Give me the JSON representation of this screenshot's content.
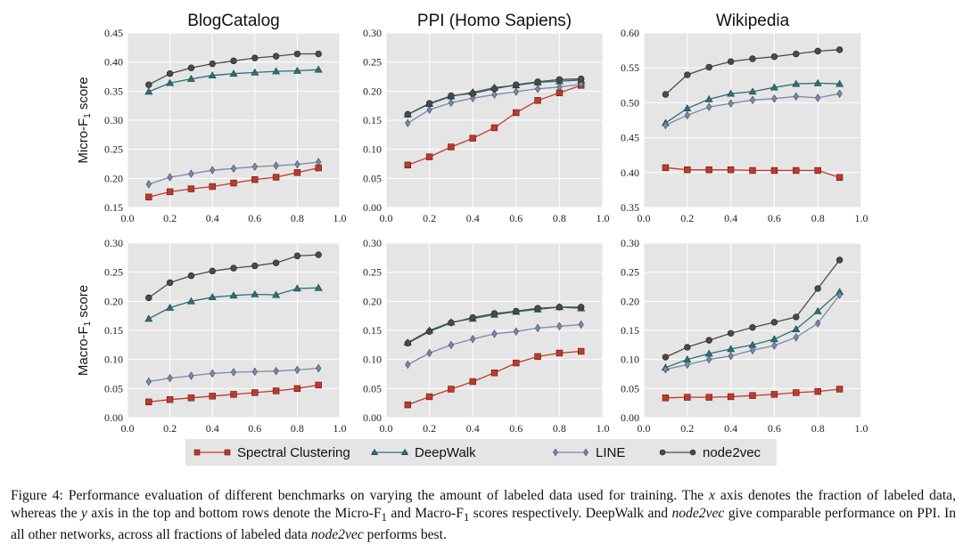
{
  "caption": {
    "p1": "Figure 4: Performance evaluation of different benchmarks on varying the amount of labeled data used for training. The ",
    "v1": "x",
    "p2": " axis denotes the fraction of labeled data, whereas the ",
    "v2": "y",
    "p3": " axis in the top and bottom rows denote the Micro-F",
    "s1": "1",
    "p4": " and Macro-F",
    "s2": "1",
    "p5": " scores respectively. DeepWalk and ",
    "i1": "node2vec",
    "p6": " give comparable performance on PPI. In all other networks, across all fractions of labeled data ",
    "i2": "node2vec",
    "p7": " performs best."
  },
  "legend": [
    {
      "key": "sc",
      "label": "Spectral Clustering"
    },
    {
      "key": "dw",
      "label": "DeepWalk"
    },
    {
      "key": "line",
      "label": "LINE"
    },
    {
      "key": "n2v",
      "label": "node2vec"
    }
  ],
  "colors": {
    "plot_bg": "#e5e5e5",
    "grid": "#ffffff",
    "sc": "#c0392b",
    "dw": "#2f6f73",
    "line": "#7a8aa6",
    "n2v": "#4a4a4a",
    "legend_bg": "#e5e5e5"
  },
  "chart_data": [
    {
      "type": "line",
      "title": "BlogCatalog",
      "ylabel": "Micro-F1 score",
      "xlim": [
        0.0,
        1.0
      ],
      "ylim": [
        0.15,
        0.45
      ],
      "xticks": [
        "0.0",
        "0.2",
        "0.4",
        "0.6",
        "0.8",
        "1.0"
      ],
      "yticks": [
        "0.15",
        "0.20",
        "0.25",
        "0.30",
        "0.35",
        "0.40",
        "0.45"
      ],
      "x": [
        0.1,
        0.2,
        0.3,
        0.4,
        0.5,
        0.6,
        0.7,
        0.8,
        0.9
      ],
      "series": [
        {
          "key": "sc",
          "name": "Spectral Clustering",
          "values": [
            0.168,
            0.177,
            0.182,
            0.186,
            0.192,
            0.198,
            0.202,
            0.21,
            0.218
          ]
        },
        {
          "key": "dw",
          "name": "DeepWalk",
          "values": [
            0.349,
            0.364,
            0.371,
            0.377,
            0.38,
            0.382,
            0.384,
            0.385,
            0.387
          ]
        },
        {
          "key": "line",
          "name": "LINE",
          "values": [
            0.19,
            0.202,
            0.208,
            0.214,
            0.217,
            0.22,
            0.222,
            0.224,
            0.228
          ]
        },
        {
          "key": "n2v",
          "name": "node2vec",
          "values": [
            0.361,
            0.38,
            0.39,
            0.397,
            0.402,
            0.407,
            0.41,
            0.414,
            0.414
          ]
        }
      ]
    },
    {
      "type": "line",
      "title": "PPI (Homo Sapiens)",
      "ylabel": "",
      "xlim": [
        0.0,
        1.0
      ],
      "ylim": [
        0.0,
        0.3
      ],
      "xticks": [
        "0.0",
        "0.2",
        "0.4",
        "0.6",
        "0.8",
        "1.0"
      ],
      "yticks": [
        "0.00",
        "0.05",
        "0.10",
        "0.15",
        "0.20",
        "0.25",
        "0.30"
      ],
      "x": [
        0.1,
        0.2,
        0.3,
        0.4,
        0.5,
        0.6,
        0.7,
        0.8,
        0.9
      ],
      "series": [
        {
          "key": "sc",
          "name": "Spectral Clustering",
          "values": [
            0.073,
            0.087,
            0.104,
            0.119,
            0.137,
            0.163,
            0.184,
            0.197,
            0.21
          ]
        },
        {
          "key": "dw",
          "name": "DeepWalk",
          "values": [
            0.16,
            0.178,
            0.191,
            0.198,
            0.206,
            0.21,
            0.215,
            0.217,
            0.219
          ]
        },
        {
          "key": "line",
          "name": "LINE",
          "values": [
            0.145,
            0.168,
            0.18,
            0.188,
            0.194,
            0.199,
            0.204,
            0.207,
            0.212
          ]
        },
        {
          "key": "n2v",
          "name": "node2vec",
          "values": [
            0.16,
            0.179,
            0.192,
            0.196,
            0.204,
            0.211,
            0.216,
            0.22,
            0.221
          ]
        }
      ]
    },
    {
      "type": "line",
      "title": "Wikipedia",
      "ylabel": "",
      "xlim": [
        0.0,
        1.0
      ],
      "ylim": [
        0.35,
        0.6
      ],
      "xticks": [
        "0.0",
        "0.2",
        "0.4",
        "0.6",
        "0.8",
        "1.0"
      ],
      "yticks": [
        "0.35",
        "0.40",
        "0.45",
        "0.50",
        "0.55",
        "0.60"
      ],
      "x": [
        0.1,
        0.2,
        0.3,
        0.4,
        0.5,
        0.6,
        0.7,
        0.8,
        0.9
      ],
      "series": [
        {
          "key": "sc",
          "name": "Spectral Clustering",
          "values": [
            0.407,
            0.404,
            0.404,
            0.404,
            0.403,
            0.403,
            0.403,
            0.403,
            0.393
          ]
        },
        {
          "key": "dw",
          "name": "DeepWalk",
          "values": [
            0.471,
            0.492,
            0.505,
            0.513,
            0.516,
            0.522,
            0.527,
            0.528,
            0.527
          ]
        },
        {
          "key": "line",
          "name": "LINE",
          "values": [
            0.468,
            0.482,
            0.494,
            0.499,
            0.504,
            0.506,
            0.509,
            0.507,
            0.513
          ]
        },
        {
          "key": "n2v",
          "name": "node2vec",
          "values": [
            0.512,
            0.54,
            0.551,
            0.559,
            0.563,
            0.566,
            0.57,
            0.574,
            0.576
          ]
        }
      ]
    },
    {
      "type": "line",
      "title": "",
      "ylabel": "Macro-F1 score",
      "xlim": [
        0.0,
        1.0
      ],
      "ylim": [
        0.0,
        0.3
      ],
      "xticks": [
        "0.0",
        "0.2",
        "0.4",
        "0.6",
        "0.8",
        "1.0"
      ],
      "yticks": [
        "0.00",
        "0.05",
        "0.10",
        "0.15",
        "0.20",
        "0.25",
        "0.30"
      ],
      "x": [
        0.1,
        0.2,
        0.3,
        0.4,
        0.5,
        0.6,
        0.7,
        0.8,
        0.9
      ],
      "series": [
        {
          "key": "sc",
          "name": "Spectral Clustering",
          "values": [
            0.027,
            0.031,
            0.034,
            0.037,
            0.04,
            0.043,
            0.046,
            0.05,
            0.056
          ]
        },
        {
          "key": "dw",
          "name": "DeepWalk",
          "values": [
            0.17,
            0.189,
            0.2,
            0.207,
            0.21,
            0.212,
            0.211,
            0.222,
            0.223
          ]
        },
        {
          "key": "line",
          "name": "LINE",
          "values": [
            0.062,
            0.068,
            0.072,
            0.076,
            0.078,
            0.079,
            0.08,
            0.082,
            0.085
          ]
        },
        {
          "key": "n2v",
          "name": "node2vec",
          "values": [
            0.206,
            0.232,
            0.244,
            0.252,
            0.257,
            0.261,
            0.266,
            0.278,
            0.28
          ]
        }
      ]
    },
    {
      "type": "line",
      "title": "",
      "ylabel": "",
      "xlim": [
        0.0,
        1.0
      ],
      "ylim": [
        0.0,
        0.3
      ],
      "xticks": [
        "0.0",
        "0.2",
        "0.4",
        "0.6",
        "0.8",
        "1.0"
      ],
      "yticks": [
        "0.00",
        "0.05",
        "0.10",
        "0.15",
        "0.20",
        "0.25",
        "0.30"
      ],
      "x": [
        0.1,
        0.2,
        0.3,
        0.4,
        0.5,
        0.6,
        0.7,
        0.8,
        0.9
      ],
      "series": [
        {
          "key": "sc",
          "name": "Spectral Clustering",
          "values": [
            0.022,
            0.036,
            0.049,
            0.062,
            0.077,
            0.094,
            0.105,
            0.111,
            0.114
          ]
        },
        {
          "key": "dw",
          "name": "DeepWalk",
          "values": [
            0.129,
            0.15,
            0.164,
            0.17,
            0.177,
            0.182,
            0.186,
            0.19,
            0.188
          ]
        },
        {
          "key": "line",
          "name": "LINE",
          "values": [
            0.091,
            0.111,
            0.125,
            0.135,
            0.144,
            0.148,
            0.154,
            0.157,
            0.16
          ]
        },
        {
          "key": "n2v",
          "name": "node2vec",
          "values": [
            0.128,
            0.148,
            0.163,
            0.172,
            0.179,
            0.183,
            0.188,
            0.19,
            0.19
          ]
        }
      ]
    },
    {
      "type": "line",
      "title": "",
      "ylabel": "",
      "xlim": [
        0.0,
        1.0
      ],
      "ylim": [
        0.0,
        0.3
      ],
      "xticks": [
        "0.0",
        "0.2",
        "0.4",
        "0.6",
        "0.8",
        "1.0"
      ],
      "yticks": [
        "0.00",
        "0.05",
        "0.10",
        "0.15",
        "0.20",
        "0.25",
        "0.30"
      ],
      "x": [
        0.1,
        0.2,
        0.3,
        0.4,
        0.5,
        0.6,
        0.7,
        0.8,
        0.9
      ],
      "series": [
        {
          "key": "sc",
          "name": "Spectral Clustering",
          "values": [
            0.034,
            0.035,
            0.035,
            0.036,
            0.038,
            0.04,
            0.043,
            0.045,
            0.049
          ]
        },
        {
          "key": "dw",
          "name": "DeepWalk",
          "values": [
            0.086,
            0.1,
            0.11,
            0.118,
            0.125,
            0.135,
            0.152,
            0.183,
            0.216
          ]
        },
        {
          "key": "line",
          "name": "LINE",
          "values": [
            0.083,
            0.091,
            0.1,
            0.106,
            0.116,
            0.124,
            0.138,
            0.162,
            0.211
          ]
        },
        {
          "key": "n2v",
          "name": "node2vec",
          "values": [
            0.104,
            0.121,
            0.133,
            0.145,
            0.155,
            0.164,
            0.173,
            0.222,
            0.271
          ]
        }
      ]
    }
  ]
}
